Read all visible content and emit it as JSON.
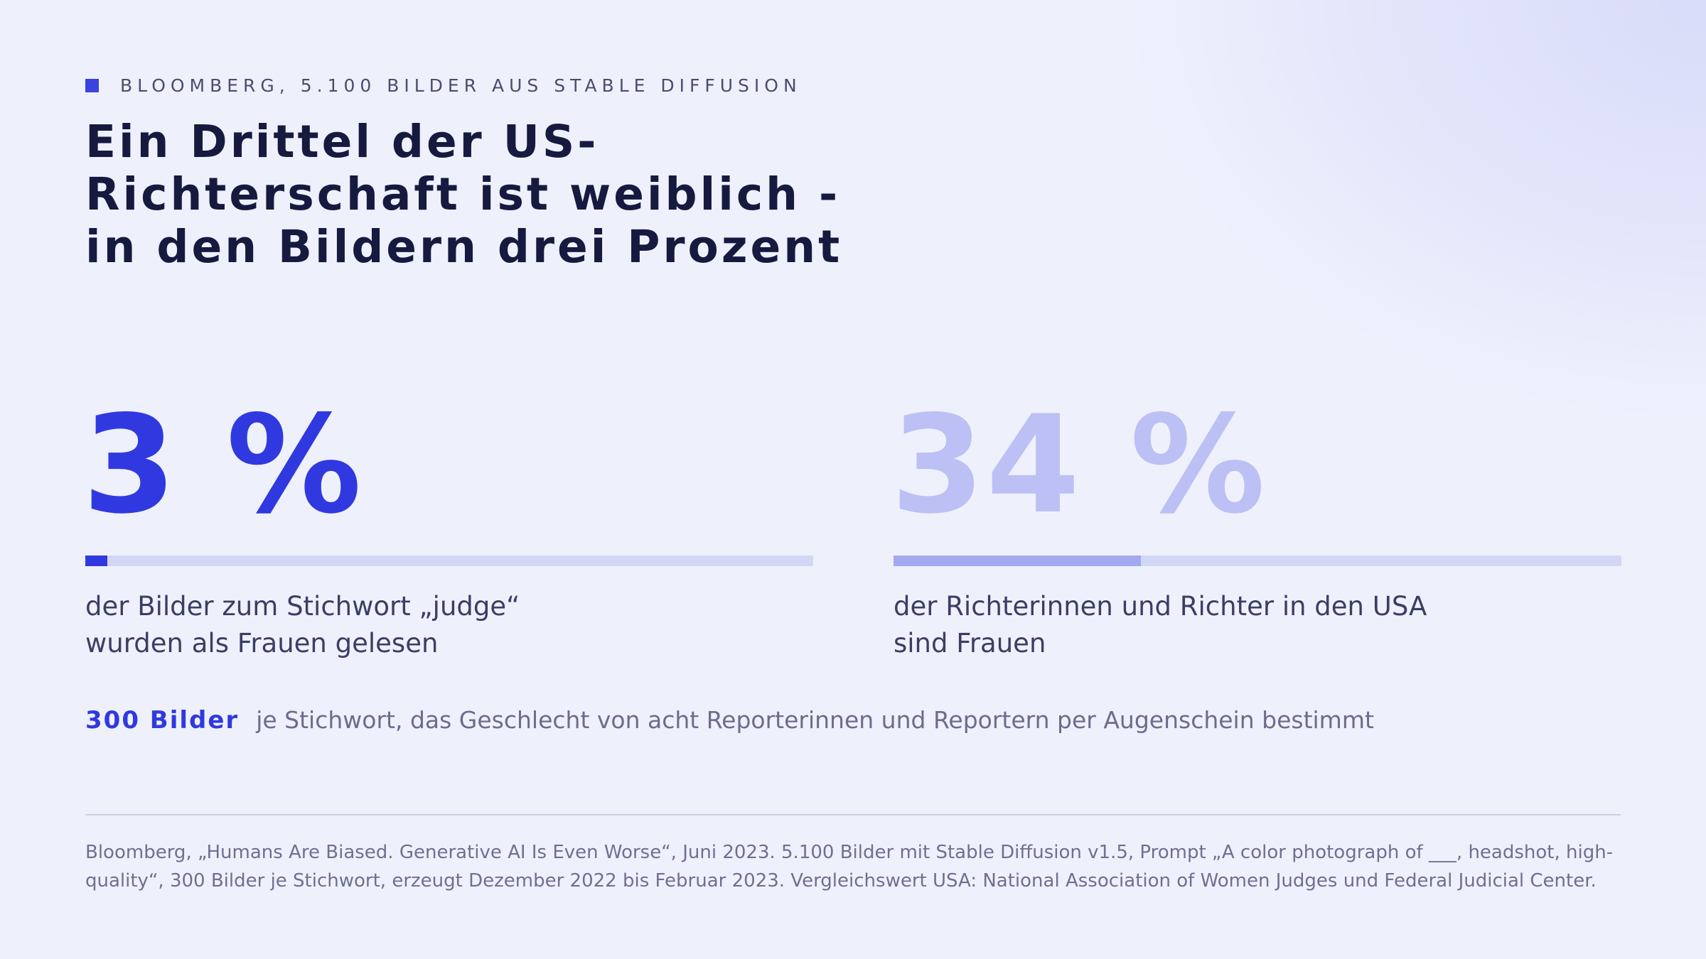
{
  "kicker": "BLOOMBERG, 5.100 BILDER AUS STABLE DIFFUSION",
  "headline": "Ein Drittel der US-Richterschaft ist weiblich - in den Bildern drei Prozent",
  "colors": {
    "accent": "#3039e0",
    "accent_light": "#bcc0f4",
    "bar_track": "#d3d7f6",
    "bar_fill_light": "#a3a9ee",
    "headline": "#171a3f",
    "background": "#eef1fc"
  },
  "stats": {
    "left": {
      "value_label": "3 %",
      "caption": "der Bilder zum Stichwort „judge“ wurden als Frauen gelesen"
    },
    "right": {
      "value_label": "34 %",
      "caption": "der Richterinnen und Richter in den USA sind Frauen"
    }
  },
  "method": {
    "key": "300 Bilder",
    "text": "je Stichwort, das Geschlecht von acht Reporterinnen und Reportern per Augenschein bestimmt"
  },
  "source": "Bloomberg, „Humans Are Biased. Generative AI Is Even Worse“, Juni 2023. 5.100 Bilder mit Stable Diffusion v1.5, Prompt „A color photograph of ___, headshot, high-quality“, 300 Bilder je Stichwort, erzeugt Dezember 2022 bis Februar 2023. Vergleichswert USA: National Association of Women Judges und Federal Judicial Center.",
  "chart_data": {
    "type": "bar",
    "categories": [
      "der Bilder zum Stichwort „judge“ wurden als Frauen gelesen",
      "der Richterinnen und Richter in den USA sind Frauen"
    ],
    "values": [
      3,
      34
    ],
    "unit": "%",
    "ylim": [
      0,
      100
    ],
    "grid": false
  }
}
